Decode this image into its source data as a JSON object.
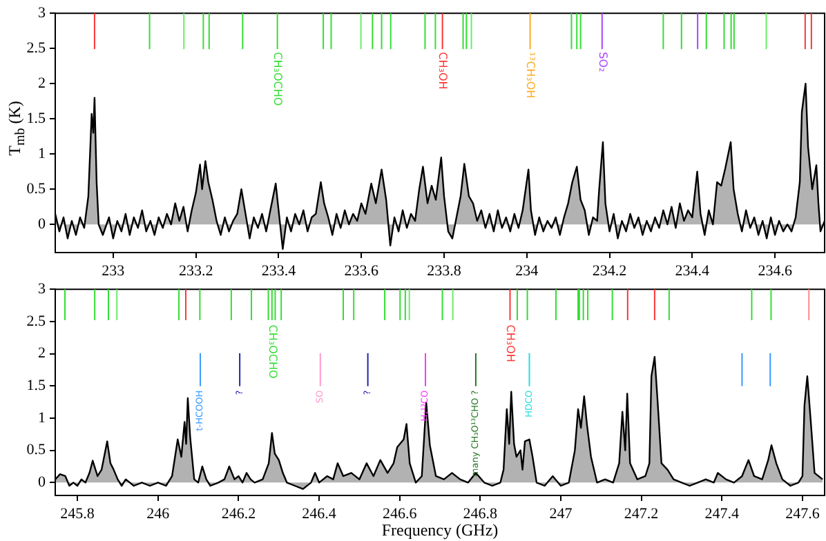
{
  "chart_data": [
    {
      "type": "area",
      "ylabel": "T$_{mb}$ (K)",
      "color": "#000000",
      "xlim": [
        232.86,
        234.72
      ],
      "ylim": [
        -0.4,
        3
      ],
      "xticks": [
        233,
        233.2,
        233.4,
        233.6,
        233.8,
        234,
        234.2,
        234.4,
        234.6
      ],
      "yticks": [
        0,
        0.5,
        1,
        1.5,
        2,
        2.5,
        3
      ],
      "x": [
        232.86,
        232.87,
        232.88,
        232.89,
        232.9,
        232.91,
        232.92,
        232.93,
        232.94,
        232.948,
        232.952,
        232.955,
        232.96,
        232.965,
        232.975,
        232.99,
        233.0,
        233.01,
        233.02,
        233.03,
        233.04,
        233.05,
        233.06,
        233.07,
        233.08,
        233.09,
        233.1,
        233.11,
        233.12,
        233.13,
        233.14,
        233.15,
        233.16,
        233.17,
        233.18,
        233.19,
        233.2,
        233.21,
        233.215,
        233.223,
        233.23,
        233.24,
        233.25,
        233.26,
        233.27,
        233.28,
        233.29,
        233.3,
        233.31,
        233.32,
        233.33,
        233.34,
        233.35,
        233.36,
        233.37,
        233.38,
        233.393,
        233.4,
        233.41,
        233.42,
        233.43,
        233.44,
        233.45,
        233.46,
        233.47,
        233.48,
        233.49,
        233.502,
        233.51,
        233.52,
        233.53,
        233.54,
        233.55,
        233.56,
        233.57,
        233.58,
        233.59,
        233.6,
        233.61,
        233.624,
        233.635,
        233.649,
        233.66,
        233.67,
        233.68,
        233.69,
        233.7,
        233.71,
        233.72,
        233.73,
        233.74,
        233.749,
        233.76,
        233.77,
        233.78,
        233.793,
        233.8,
        233.81,
        233.82,
        233.83,
        233.84,
        233.849,
        233.86,
        233.87,
        233.88,
        233.89,
        233.9,
        233.91,
        233.92,
        233.93,
        233.94,
        233.95,
        233.96,
        233.97,
        233.98,
        233.99,
        234.004,
        234.01,
        234.02,
        234.03,
        234.04,
        234.05,
        234.06,
        234.07,
        234.08,
        234.09,
        234.1,
        234.11,
        234.121,
        234.13,
        234.14,
        234.15,
        234.16,
        234.17,
        234.175,
        234.184,
        234.19,
        234.2,
        234.21,
        234.22,
        234.23,
        234.24,
        234.25,
        234.26,
        234.27,
        234.28,
        234.29,
        234.3,
        234.31,
        234.32,
        234.33,
        234.34,
        234.35,
        234.36,
        234.37,
        234.38,
        234.39,
        234.4,
        234.412,
        234.42,
        234.43,
        234.44,
        234.45,
        234.46,
        234.47,
        234.48,
        234.493,
        234.5,
        234.51,
        234.52,
        234.53,
        234.54,
        234.55,
        234.56,
        234.57,
        234.58,
        234.59,
        234.6,
        234.61,
        234.62,
        234.63,
        234.64,
        234.65,
        234.66,
        234.665,
        234.674,
        234.68,
        234.69,
        234.7,
        234.705,
        234.71,
        234.72
      ],
      "values": [
        0.15,
        -0.1,
        0.1,
        -0.2,
        0.05,
        -0.15,
        0.1,
        -0.05,
        0.4,
        1.57,
        1.3,
        1.8,
        0.6,
        0.0,
        -0.15,
        0.1,
        -0.2,
        0.05,
        -0.1,
        0.15,
        -0.15,
        0.1,
        -0.05,
        0.2,
        -0.1,
        0.05,
        -0.15,
        0.1,
        -0.05,
        0.15,
        0.0,
        0.3,
        0.05,
        0.25,
        -0.1,
        0.2,
        0.45,
        0.85,
        0.5,
        0.9,
        0.6,
        0.35,
        0.05,
        -0.15,
        0.1,
        -0.1,
        0.05,
        0.15,
        0.5,
        0.15,
        -0.2,
        0.1,
        -0.05,
        0.15,
        -0.1,
        0.2,
        0.58,
        0.2,
        -0.35,
        0.1,
        -0.1,
        0.15,
        0.0,
        0.2,
        -0.1,
        0.1,
        0.15,
        0.6,
        0.3,
        0.1,
        -0.15,
        0.15,
        -0.05,
        0.2,
        0.0,
        0.15,
        0.05,
        0.3,
        0.15,
        0.58,
        0.3,
        0.78,
        0.35,
        -0.3,
        0.1,
        -0.1,
        0.2,
        -0.05,
        0.15,
        0.05,
        0.5,
        0.82,
        0.3,
        0.55,
        0.35,
        0.95,
        0.4,
        -0.1,
        -0.2,
        0.1,
        0.4,
        0.86,
        0.4,
        0.3,
        0.05,
        0.2,
        -0.05,
        0.15,
        -0.1,
        0.2,
        -0.05,
        0.1,
        -0.1,
        0.15,
        -0.05,
        0.2,
        0.78,
        0.2,
        -0.15,
        0.1,
        -0.1,
        0.05,
        -0.05,
        0.1,
        -0.15,
        0.1,
        0.3,
        0.6,
        0.82,
        0.35,
        0.2,
        -0.15,
        0.1,
        0.05,
        0.5,
        1.17,
        0.3,
        -0.1,
        0.15,
        -0.2,
        0.05,
        -0.1,
        0.15,
        -0.05,
        0.1,
        -0.15,
        0.05,
        -0.1,
        0.1,
        -0.05,
        0.2,
        0.0,
        0.25,
        -0.05,
        0.3,
        0.05,
        0.2,
        0.1,
        0.75,
        0.15,
        -0.15,
        0.2,
        0.0,
        0.6,
        0.55,
        0.8,
        1.17,
        0.5,
        0.15,
        -0.1,
        0.2,
        -0.05,
        0.1,
        -0.15,
        0.05,
        -0.2,
        0.1,
        -0.15,
        0.05,
        -0.1,
        0.0,
        -0.1,
        0.1,
        0.6,
        1.6,
        2.0,
        1.1,
        0.5,
        0.84,
        0.3,
        -0.1,
        0.05
      ],
      "ref_lines": [
        {
          "axis": "x",
          "value": 232.955,
          "color": "#ff3333"
        },
        {
          "axis": "x",
          "value": 233.088,
          "color": "#33dd33"
        },
        {
          "axis": "x",
          "value": 233.171,
          "color": "#66ee66"
        },
        {
          "axis": "x",
          "value": 233.218,
          "color": "#33dd33"
        },
        {
          "axis": "x",
          "value": 233.232,
          "color": "#33dd33"
        },
        {
          "axis": "x",
          "value": 233.313,
          "color": "#33dd33"
        },
        {
          "axis": "x",
          "value": 233.397,
          "color": "#33dd33"
        },
        {
          "axis": "x",
          "value": 233.508,
          "color": "#33dd33"
        },
        {
          "axis": "x",
          "value": 233.527,
          "color": "#33dd33"
        },
        {
          "axis": "x",
          "value": 233.599,
          "color": "#66ee66"
        },
        {
          "axis": "x",
          "value": 233.627,
          "color": "#33dd33"
        },
        {
          "axis": "x",
          "value": 233.649,
          "color": "#33dd33"
        },
        {
          "axis": "x",
          "value": 233.671,
          "color": "#33dd33"
        },
        {
          "axis": "x",
          "value": 233.754,
          "color": "#33dd33"
        },
        {
          "axis": "x",
          "value": 233.779,
          "color": "#33dd33"
        },
        {
          "axis": "x",
          "value": 233.796,
          "color": "#ff3333"
        },
        {
          "axis": "x",
          "value": 233.846,
          "color": "#33dd33"
        },
        {
          "axis": "x",
          "value": 233.854,
          "color": "#33dd33"
        },
        {
          "axis": "x",
          "value": 233.866,
          "color": "#66ee66"
        },
        {
          "axis": "x",
          "value": 234.008,
          "color": "#ffaa22"
        },
        {
          "axis": "x",
          "value": 234.108,
          "color": "#33dd33"
        },
        {
          "axis": "x",
          "value": 234.121,
          "color": "#33dd33"
        },
        {
          "axis": "x",
          "value": 234.13,
          "color": "#33dd33"
        },
        {
          "axis": "x",
          "value": 234.182,
          "color": "#aa44ff"
        },
        {
          "axis": "x",
          "value": 234.33,
          "color": "#33dd33"
        },
        {
          "axis": "x",
          "value": 234.374,
          "color": "#33dd33"
        },
        {
          "axis": "x",
          "value": 234.413,
          "color": "#aa44ff"
        },
        {
          "axis": "x",
          "value": 234.434,
          "color": "#33dd33"
        },
        {
          "axis": "x",
          "value": 234.477,
          "color": "#33dd33"
        },
        {
          "axis": "x",
          "value": 234.494,
          "color": "#33dd33"
        },
        {
          "axis": "x",
          "value": 234.501,
          "color": "#33dd33"
        },
        {
          "axis": "x",
          "value": 234.579,
          "color": "#66ee66"
        },
        {
          "axis": "x",
          "value": 234.673,
          "color": "#ff3333"
        },
        {
          "axis": "x",
          "value": 234.688,
          "color": "#ff3333"
        }
      ],
      "annotations": [
        {
          "text": "CH₃OCHO",
          "x": 233.397,
          "y": 2.45
        },
        {
          "text": "CH₃OH",
          "x": 233.796,
          "y": 2.45
        },
        {
          "text": "¹³CH₃OH",
          "x": 234.008,
          "y": 2.45
        },
        {
          "text": "SO₂",
          "x": 234.182,
          "y": 2.45
        }
      ]
    },
    {
      "type": "area",
      "xlabel": "Frequency (GHz)",
      "color": "#000000",
      "xlim": [
        245.745,
        247.655
      ],
      "ylim": [
        -0.2,
        3
      ],
      "xticks": [
        245.8,
        246,
        246.2,
        246.4,
        246.6,
        246.8,
        247,
        247.2,
        247.4,
        247.6
      ],
      "yticks": [
        0,
        0.5,
        1,
        1.5,
        2,
        2.5,
        3
      ],
      "x": [
        245.745,
        245.757,
        245.77,
        245.78,
        245.79,
        245.8,
        245.81,
        245.82,
        245.83,
        245.838,
        245.85,
        245.86,
        245.874,
        245.882,
        245.89,
        245.9,
        245.91,
        245.92,
        245.94,
        245.96,
        245.98,
        246.0,
        246.02,
        246.035,
        246.049,
        246.058,
        246.066,
        246.07,
        246.074,
        246.08,
        246.09,
        246.1,
        246.11,
        246.12,
        246.13,
        246.15,
        246.165,
        246.177,
        246.19,
        246.2,
        246.21,
        246.22,
        246.23,
        246.24,
        246.26,
        246.275,
        246.283,
        246.29,
        246.3,
        246.31,
        246.32,
        246.34,
        246.36,
        246.38,
        246.39,
        246.4,
        246.42,
        246.435,
        246.446,
        246.46,
        246.48,
        246.5,
        246.518,
        246.535,
        246.552,
        246.57,
        246.585,
        246.594,
        246.61,
        246.617,
        246.625,
        246.64,
        246.655,
        246.666,
        246.675,
        246.69,
        246.71,
        246.73,
        246.75,
        246.77,
        246.789,
        246.81,
        246.83,
        246.85,
        246.858,
        246.866,
        246.872,
        246.877,
        246.884,
        246.89,
        246.9,
        246.905,
        246.911,
        246.922,
        246.93,
        246.94,
        246.96,
        246.98,
        247.0,
        247.02,
        247.035,
        247.043,
        247.05,
        247.058,
        247.065,
        247.075,
        247.09,
        247.11,
        247.13,
        247.145,
        247.153,
        247.16,
        247.165,
        247.172,
        247.19,
        247.21,
        247.22,
        247.225,
        247.233,
        247.24,
        247.25,
        247.265,
        247.28,
        247.3,
        247.32,
        247.34,
        247.36,
        247.38,
        247.39,
        247.41,
        247.43,
        247.45,
        247.466,
        247.48,
        247.5,
        247.515,
        247.523,
        247.535,
        247.55,
        247.57,
        247.59,
        247.6,
        247.605,
        247.612,
        247.62,
        247.63,
        247.65
      ],
      "values": [
        0.05,
        0.13,
        0.1,
        -0.05,
        0.0,
        -0.05,
        0.05,
        0.0,
        0.15,
        0.34,
        0.1,
        0.2,
        0.64,
        0.3,
        0.2,
        0.05,
        -0.05,
        0.05,
        -0.05,
        0.0,
        -0.05,
        0.0,
        -0.05,
        0.1,
        0.67,
        0.4,
        0.94,
        0.6,
        1.31,
        0.7,
        0.05,
        0.0,
        0.25,
        0.05,
        -0.05,
        0.0,
        0.05,
        0.25,
        0.05,
        0.1,
        0.0,
        0.15,
        0.05,
        0.0,
        0.05,
        0.3,
        0.77,
        0.45,
        0.35,
        0.15,
        0.0,
        -0.05,
        -0.1,
        0.0,
        0.15,
        0.0,
        0.1,
        0.05,
        0.3,
        0.1,
        0.15,
        0.05,
        0.3,
        0.1,
        0.35,
        0.15,
        0.3,
        0.55,
        0.67,
        0.91,
        0.3,
        0.0,
        0.1,
        1.24,
        0.58,
        0.1,
        0.05,
        0.15,
        0.05,
        0.0,
        0.15,
        0.0,
        -0.05,
        0.0,
        0.2,
        1.14,
        0.6,
        1.41,
        0.6,
        0.4,
        0.5,
        0.2,
        0.64,
        0.67,
        0.4,
        0.0,
        -0.05,
        0.1,
        -0.05,
        0.0,
        0.5,
        1.14,
        0.85,
        1.34,
        0.9,
        0.4,
        0.0,
        0.05,
        0.0,
        0.3,
        1.1,
        0.5,
        1.38,
        0.3,
        0.05,
        0.1,
        0.3,
        1.65,
        1.95,
        1.3,
        0.3,
        0.2,
        0.05,
        0.0,
        -0.05,
        0.0,
        0.05,
        0.0,
        0.15,
        0.05,
        0.0,
        0.1,
        0.35,
        0.1,
        0.05,
        0.35,
        0.58,
        0.3,
        0.05,
        -0.05,
        0.0,
        0.1,
        1.2,
        1.65,
        1.0,
        0.15,
        0.05
      ],
      "ref_lines": [
        {
          "axis": "x",
          "value": 245.769,
          "color": "#33dd33"
        },
        {
          "axis": "x",
          "value": 245.843,
          "color": "#33dd33"
        },
        {
          "axis": "x",
          "value": 245.877,
          "color": "#33dd33"
        },
        {
          "axis": "x",
          "value": 245.898,
          "color": "#66ee66"
        },
        {
          "axis": "x",
          "value": 246.052,
          "color": "#33dd33"
        },
        {
          "axis": "x",
          "value": 246.069,
          "color": "#ff3333"
        },
        {
          "axis": "x",
          "value": 246.104,
          "color": "#33dd33"
        },
        {
          "axis": "x",
          "value": 246.182,
          "color": "#33dd33"
        },
        {
          "axis": "x",
          "value": 246.232,
          "color": "#33dd33"
        },
        {
          "axis": "x",
          "value": 246.274,
          "color": "#33dd33"
        },
        {
          "axis": "x",
          "value": 246.283,
          "color": "#33dd33"
        },
        {
          "axis": "x",
          "value": 246.291,
          "color": "#33dd33"
        },
        {
          "axis": "x",
          "value": 246.306,
          "color": "#33dd33"
        },
        {
          "axis": "x",
          "value": 246.46,
          "color": "#33dd33"
        },
        {
          "axis": "x",
          "value": 246.486,
          "color": "#33dd33"
        },
        {
          "axis": "x",
          "value": 246.563,
          "color": "#33dd33"
        },
        {
          "axis": "x",
          "value": 246.601,
          "color": "#33dd33"
        },
        {
          "axis": "x",
          "value": 246.614,
          "color": "#33dd33"
        },
        {
          "axis": "x",
          "value": 246.624,
          "color": "#66ee66"
        },
        {
          "axis": "x",
          "value": 246.706,
          "color": "#33dd33"
        },
        {
          "axis": "x",
          "value": 246.732,
          "color": "#66ee66"
        },
        {
          "axis": "x",
          "value": 246.874,
          "color": "#ff3333"
        },
        {
          "axis": "x",
          "value": 246.892,
          "color": "#33dd33"
        },
        {
          "axis": "x",
          "value": 246.917,
          "color": "#33dd33"
        },
        {
          "axis": "x",
          "value": 246.988,
          "color": "#33dd33"
        },
        {
          "axis": "x",
          "value": 247.043,
          "color": "#33dd33"
        },
        {
          "axis": "x",
          "value": 247.046,
          "color": "#33dd33"
        },
        {
          "axis": "x",
          "value": 247.056,
          "color": "#33dd33"
        },
        {
          "axis": "x",
          "value": 247.067,
          "color": "#33dd33"
        },
        {
          "axis": "x",
          "value": 247.128,
          "color": "#33dd33"
        },
        {
          "axis": "x",
          "value": 247.166,
          "color": "#ff3333"
        },
        {
          "axis": "x",
          "value": 247.233,
          "color": "#ff3333"
        },
        {
          "axis": "x",
          "value": 247.269,
          "color": "#33dd33"
        },
        {
          "axis": "x",
          "value": 247.474,
          "color": "#33dd33"
        },
        {
          "axis": "x",
          "value": 247.522,
          "color": "#33dd33"
        },
        {
          "axis": "x",
          "value": 247.616,
          "color": "#ff8888"
        },
        {
          "axis": "x",
          "value": 246.105,
          "color": "#3399ff",
          "label": "t-HCOOH"
        },
        {
          "axis": "x",
          "value": 246.203,
          "color": "#2222aa",
          "label": "?"
        },
        {
          "axis": "x",
          "value": 246.403,
          "color": "#ff99cc",
          "label": "SO"
        },
        {
          "axis": "x",
          "value": 246.521,
          "color": "#2222aa",
          "label": "?"
        },
        {
          "axis": "x",
          "value": 246.664,
          "color": "#ff33ff",
          "label": "H₂¹³CO"
        },
        {
          "axis": "x",
          "value": 246.789,
          "color": "#227722",
          "label": "many CH₃O¹³CHO ?"
        },
        {
          "axis": "x",
          "value": 246.922,
          "color": "#22dddd",
          "label": "HDCO"
        },
        {
          "axis": "x",
          "value": 247.45,
          "color": "#3399ff",
          "label": null
        },
        {
          "axis": "x",
          "value": 247.52,
          "color": "#3399ff",
          "label": null
        }
      ],
      "annotations": [
        {
          "text": "CH₃OCHO",
          "x": 246.283,
          "y": 2.45
        },
        {
          "text": "CH₃OH",
          "x": 246.874,
          "y": 2.45
        }
      ]
    }
  ]
}
